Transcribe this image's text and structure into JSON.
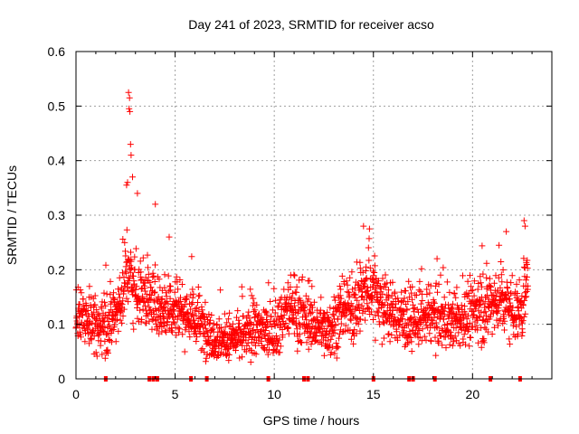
{
  "chart_data": {
    "type": "scatter",
    "title": "Day 241 of 2023, SRMTID for receiver acso",
    "xlabel": "GPS time / hours",
    "ylabel": "SRMTID / TECUs",
    "xlim": [
      0,
      24
    ],
    "ylim": [
      0,
      0.6
    ],
    "xticks": [
      0,
      5,
      10,
      15,
      20
    ],
    "xtick_labels": [
      "0",
      "5",
      "10",
      "15",
      "20"
    ],
    "yticks": [
      0,
      0.1,
      0.2,
      0.3,
      0.4,
      0.5,
      0.6
    ],
    "ytick_labels": [
      "0",
      "0.1",
      "0.2",
      "0.3",
      "0.4",
      "0.5",
      "0.6"
    ],
    "grid": true,
    "marker": "+",
    "color": "#ff0000",
    "trend": {
      "x": [
        0.0,
        0.5,
        1.0,
        1.5,
        2.0,
        2.4,
        2.6,
        2.8,
        3.0,
        3.5,
        4.0,
        4.5,
        5.0,
        5.5,
        6.0,
        6.5,
        7.0,
        7.5,
        8.0,
        8.5,
        9.0,
        9.5,
        10.0,
        10.5,
        11.0,
        11.5,
        12.0,
        12.5,
        13.0,
        13.5,
        14.0,
        14.5,
        15.0,
        15.5,
        16.0,
        16.5,
        17.0,
        17.5,
        18.0,
        18.5,
        19.0,
        19.5,
        20.0,
        20.5,
        21.0,
        21.5,
        22.0,
        22.5,
        22.8
      ],
      "y": [
        0.11,
        0.12,
        0.09,
        0.1,
        0.12,
        0.16,
        0.22,
        0.18,
        0.17,
        0.15,
        0.14,
        0.13,
        0.14,
        0.12,
        0.11,
        0.09,
        0.08,
        0.07,
        0.07,
        0.08,
        0.09,
        0.09,
        0.08,
        0.12,
        0.13,
        0.11,
        0.1,
        0.09,
        0.1,
        0.12,
        0.13,
        0.15,
        0.17,
        0.13,
        0.12,
        0.11,
        0.1,
        0.11,
        0.12,
        0.11,
        0.1,
        0.11,
        0.12,
        0.13,
        0.14,
        0.15,
        0.13,
        0.12,
        0.2
      ]
    },
    "peaks": [
      {
        "x": 2.65,
        "y": 0.525
      },
      {
        "x": 2.7,
        "y": 0.515
      },
      {
        "x": 2.68,
        "y": 0.495
      },
      {
        "x": 2.72,
        "y": 0.49
      },
      {
        "x": 2.75,
        "y": 0.43
      },
      {
        "x": 2.78,
        "y": 0.41
      },
      {
        "x": 2.6,
        "y": 0.36
      },
      {
        "x": 2.55,
        "y": 0.355
      },
      {
        "x": 2.85,
        "y": 0.37
      },
      {
        "x": 3.1,
        "y": 0.34
      },
      {
        "x": 4.0,
        "y": 0.32
      },
      {
        "x": 14.5,
        "y": 0.28
      },
      {
        "x": 14.8,
        "y": 0.275
      },
      {
        "x": 22.6,
        "y": 0.29
      },
      {
        "x": 22.65,
        "y": 0.28
      },
      {
        "x": 21.7,
        "y": 0.27
      },
      {
        "x": 4.7,
        "y": 0.26
      }
    ],
    "zero_markers_x": [
      1.5,
      3.7,
      3.9,
      4.1,
      5.8,
      6.6,
      9.7,
      11.5,
      11.7,
      15.0,
      16.8,
      17.0,
      18.1,
      20.9,
      22.4
    ]
  }
}
